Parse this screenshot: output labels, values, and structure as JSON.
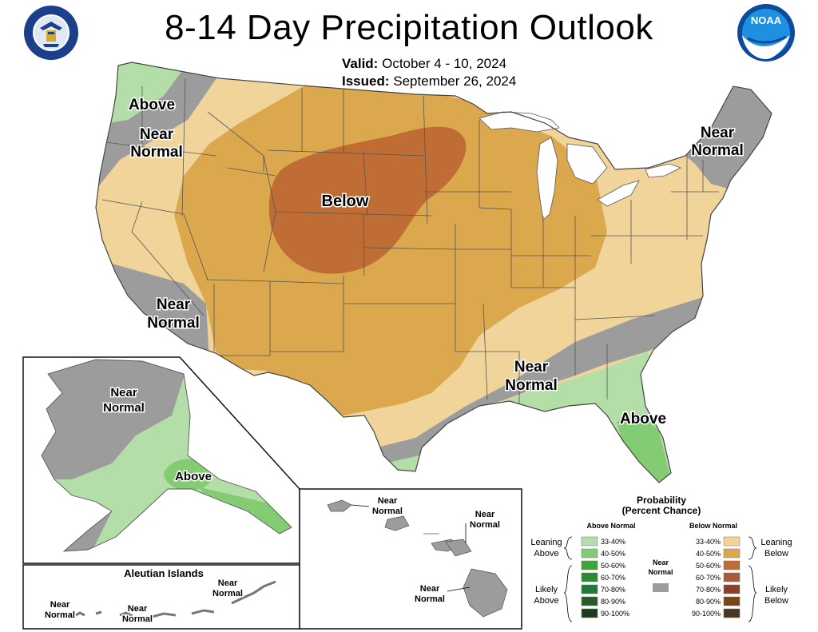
{
  "title": "8-14 Day Precipitation Outlook",
  "valid": {
    "label": "Valid:",
    "value": "October 4 - 10, 2024"
  },
  "issued": {
    "label": "Issued:",
    "value": "September 26, 2024"
  },
  "colors": {
    "above_33_40": "#b3dea8",
    "above_40_50": "#84cc73",
    "near_normal": "#9c9c9c",
    "below_33_40": "#f1d49a",
    "below_40_50": "#dca84e",
    "below_50_60": "#c06c35",
    "water": "#ffffff",
    "border": "#555555"
  },
  "map_labels": {
    "nw_above": "Above",
    "nw_near": [
      "Near",
      "Normal"
    ],
    "sw_near": [
      "Near",
      "Normal"
    ],
    "central_below": "Below",
    "ne_near": [
      "Near",
      "Normal"
    ],
    "se_near": [
      "Near",
      "Normal"
    ],
    "se_above": "Above",
    "ak_near": [
      "Near",
      "Normal"
    ],
    "ak_above": "Above",
    "aleutian_title": "Aleutian Islands",
    "aleutian_near_1": [
      "Near",
      "Normal"
    ],
    "aleutian_near_2": [
      "Near",
      "Normal"
    ],
    "aleutian_near_3": [
      "Near",
      "Normal"
    ],
    "hi_near_1": [
      "Near",
      "Normal"
    ],
    "hi_near_2": [
      "Near",
      "Normal"
    ],
    "hi_near_3": [
      "Near",
      "Normal"
    ]
  },
  "legend": {
    "title": [
      "Probability",
      "(Percent Chance)"
    ],
    "above_header": "Above Normal",
    "below_header": "Below Normal",
    "near_label": [
      "Near",
      "Normal"
    ],
    "leaning_above": [
      "Leaning",
      "Above"
    ],
    "likely_above": [
      "Likely",
      "Above"
    ],
    "leaning_below": [
      "Leaning",
      "Below"
    ],
    "likely_below": [
      "Likely",
      "Below"
    ],
    "above_rows": [
      {
        "label": "33-40%",
        "color": "#b3dea8"
      },
      {
        "label": "40-50%",
        "color": "#84cc73"
      },
      {
        "label": "50-60%",
        "color": "#3ea33a"
      },
      {
        "label": "60-70%",
        "color": "#2a8a35"
      },
      {
        "label": "70-80%",
        "color": "#1e7a3a"
      },
      {
        "label": "80-90%",
        "color": "#285a2a"
      },
      {
        "label": "90-100%",
        "color": "#1d3b1d"
      }
    ],
    "below_rows": [
      {
        "label": "33-40%",
        "color": "#f1d49a"
      },
      {
        "label": "40-50%",
        "color": "#dca84e"
      },
      {
        "label": "50-60%",
        "color": "#c06c35"
      },
      {
        "label": "60-70%",
        "color": "#a85a3a"
      },
      {
        "label": "70-80%",
        "color": "#8c3f2c"
      },
      {
        "label": "80-90%",
        "color": "#7a4512"
      },
      {
        "label": "90-100%",
        "color": "#4a3722"
      }
    ]
  },
  "logos": {
    "left": "department-of-commerce-seal",
    "right": "noaa-logo",
    "noaa_text": "NOAA"
  }
}
